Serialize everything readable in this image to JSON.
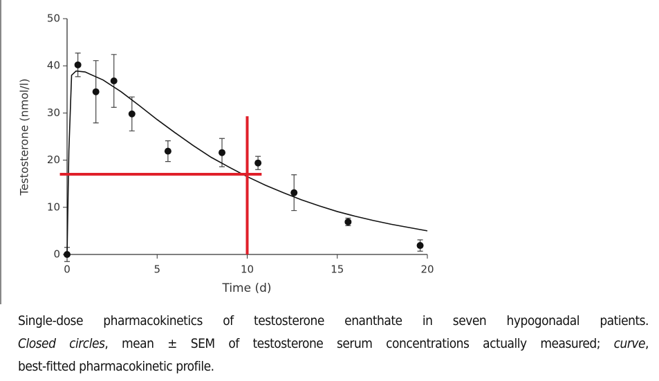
{
  "chart_data": {
    "type": "scatter",
    "x_label": "Time (d)",
    "y_label": "Testosterone (nmol/l)",
    "xlim": [
      0,
      20
    ],
    "ylim": [
      0,
      50
    ],
    "xticks": [
      0,
      5,
      10,
      15,
      20
    ],
    "yticks": [
      0,
      10,
      20,
      30,
      40,
      50
    ],
    "series": [
      {
        "mode": "markers",
        "color": "#111111",
        "x": [
          0,
          0.6,
          1.6,
          2.6,
          3.6,
          5.6,
          8.6,
          10.6,
          12.6,
          15.6,
          19.6
        ],
        "values": [
          0,
          40.2,
          34.5,
          36.8,
          29.8,
          21.9,
          21.6,
          19.4,
          13.1,
          6.9,
          1.9
        ],
        "errors": [
          1.5,
          2.5,
          6.6,
          5.6,
          3.6,
          2.2,
          3.0,
          1.4,
          3.8,
          0.8,
          1.2
        ]
      },
      {
        "mode": "line",
        "color": "#111111",
        "x": [
          0,
          0.1,
          0.25,
          0.5,
          1,
          2,
          3,
          4,
          5,
          6,
          7,
          8,
          9,
          10,
          11,
          12,
          13,
          14,
          15,
          16,
          17,
          18,
          19,
          20
        ],
        "values": [
          0,
          22,
          38,
          38.9,
          38.7,
          37,
          34.5,
          31.6,
          28.6,
          25.8,
          23.1,
          20.6,
          18.5,
          16.5,
          14.7,
          13.1,
          11.6,
          10.3,
          9.1,
          8.1,
          7.2,
          6.4,
          5.7,
          5.0
        ]
      },
      {
        "mode": "line",
        "color": "#e0202a",
        "width": 4,
        "x": [
          10,
          10
        ],
        "values": [
          0,
          29.3
        ]
      },
      {
        "mode": "line",
        "color": "#e0202a",
        "width": 4,
        "x": [
          -0.4,
          10.8
        ],
        "values": [
          17,
          17
        ]
      }
    ]
  },
  "caption": {
    "lines": [
      [
        {
          "text": "Single-dose pharmacokinetics of testosterone enanthate in seven hypogonadal patients.",
          "italic": false
        }
      ],
      [
        {
          "text": "Closed circles",
          "italic": true
        },
        {
          "text": ", mean ± SEM of testosterone serum concentrations actually measured; ",
          "italic": false
        },
        {
          "text": "curve",
          "italic": true
        },
        {
          "text": ",",
          "italic": false
        }
      ],
      [
        {
          "text": "best-fitted pharmacokinetic profile.",
          "italic": false
        }
      ]
    ]
  }
}
